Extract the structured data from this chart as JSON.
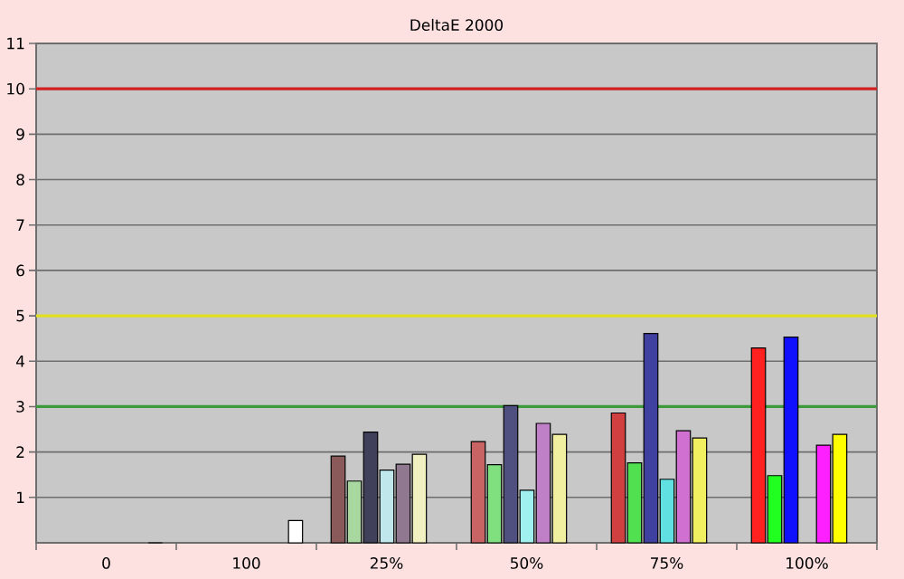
{
  "chart_data": {
    "type": "bar",
    "title": "DeltaE 2000",
    "categories": [
      "0",
      "100",
      "25%",
      "50%",
      "75%",
      "100%"
    ],
    "series": [
      {
        "values": [
          null,
          null,
          1.91,
          2.23,
          2.86,
          4.29
        ],
        "colors": [
          "#8a5a5a",
          "#8a5a5a",
          "#8a5a5a",
          "#c86464",
          "#d04040",
          "#ff2020"
        ]
      },
      {
        "values": [
          null,
          null,
          1.36,
          1.72,
          1.76,
          1.48
        ],
        "colors": [
          "#a8d8a0",
          "#a8d8a0",
          "#a8d8a0",
          "#80e080",
          "#50e050",
          "#20ff20"
        ]
      },
      {
        "values": [
          null,
          null,
          2.44,
          3.02,
          4.61,
          4.53
        ],
        "colors": [
          "#40405a",
          "#40405a",
          "#40405a",
          "#505080",
          "#4040a0",
          "#1010ff"
        ]
      },
      {
        "values": [
          null,
          null,
          1.6,
          1.16,
          1.4,
          null
        ],
        "colors": [
          "#c0e8ec",
          "#c0e8ec",
          "#c0e8ec",
          "#a0f0f0",
          "#60e0e0",
          "#00e0e0"
        ]
      },
      {
        "values": [
          null,
          null,
          1.73,
          2.63,
          2.47,
          2.15
        ],
        "colors": [
          "#907890",
          "#907890",
          "#907890",
          "#c080c8",
          "#d070d0",
          "#ff20ff"
        ]
      },
      {
        "values": [
          null,
          null,
          1.95,
          2.39,
          2.31,
          2.39
        ],
        "colors": [
          "#f0f0c0",
          "#f0f0c0",
          "#f0f0c0",
          "#f0f0a0",
          "#f0f060",
          "#ffff00"
        ]
      },
      {
        "values": [
          0,
          0.49,
          null,
          null,
          null,
          null
        ],
        "colors": [
          "#b0b0b0",
          "#ffffff",
          "#ffffff",
          "#ffffff",
          "#ffffff",
          "#ffffff"
        ]
      }
    ],
    "ylim": [
      0,
      11
    ],
    "yticks": [
      1,
      2,
      3,
      4,
      5,
      6,
      7,
      8,
      9,
      10,
      11
    ],
    "grid": "y",
    "ref_lines": [
      {
        "axis": "y",
        "value": 10,
        "color": "#d02020"
      },
      {
        "axis": "y",
        "value": 5,
        "color": "#e0e020"
      },
      {
        "axis": "y",
        "value": 3,
        "color": "#3c9a3c"
      }
    ]
  }
}
